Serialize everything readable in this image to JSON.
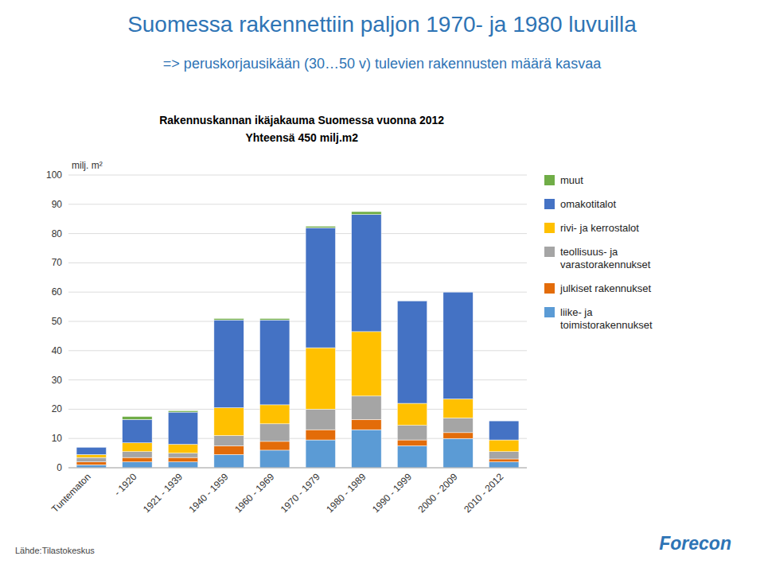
{
  "chart_data": {
    "type": "bar",
    "stacked": true,
    "title": "Suomessa rakennettiin paljon 1970- ja 1980 luvuilla",
    "subtitle": "=> peruskorjausikään (30…50 v) tulevien rakennusten määrä kasvaa",
    "annotations": [
      "Rakennuskannan ikäjakauma Suomessa vuonna 2012",
      "Yhteensä 450 milj.m2",
      "Lähde:Tilastokeskus",
      "Forecon"
    ],
    "y_label": "milj. m²",
    "categories": [
      "Tuntematon",
      "- 1920",
      "1921 - 1939",
      "1940 - 1959",
      "1960 - 1969",
      "1970 - 1979",
      "1980 - 1989",
      "1990 - 1999",
      "2000 - 2009",
      "2010 - 2012"
    ],
    "series": [
      {
        "name": "liike- ja\ntoimistorakennukset",
        "color": "#5B9BD5",
        "values": [
          1.0,
          2.0,
          2.0,
          4.5,
          6.0,
          9.5,
          13.0,
          7.5,
          10.0,
          2.0
        ]
      },
      {
        "name": "julkiset rakennukset",
        "color": "#E36C09",
        "values": [
          1.0,
          1.5,
          1.5,
          3.0,
          3.0,
          3.5,
          3.5,
          2.0,
          2.0,
          1.0
        ]
      },
      {
        "name": "teollisuus- ja\nvarastorakennukset",
        "color": "#A5A5A5",
        "values": [
          1.5,
          2.0,
          1.5,
          3.5,
          6.0,
          7.0,
          8.0,
          5.0,
          5.0,
          2.5
        ]
      },
      {
        "name": "rivi- ja kerrostalot",
        "color": "#FFC000",
        "values": [
          1.0,
          3.0,
          3.0,
          9.5,
          6.5,
          21.0,
          22.0,
          7.5,
          6.5,
          4.0
        ]
      },
      {
        "name": "omakotitalot",
        "color": "#4472C4",
        "values": [
          2.5,
          8.0,
          11.0,
          30.0,
          29.0,
          41.0,
          40.0,
          35.0,
          36.5,
          6.5
        ]
      },
      {
        "name": "muut",
        "color": "#70AD47",
        "values": [
          0.0,
          1.0,
          0.5,
          0.5,
          0.5,
          0.5,
          1.0,
          0.0,
          0.0,
          0.0
        ]
      }
    ],
    "ylim": [
      0,
      100
    ],
    "yticks": [
      0,
      10,
      20,
      30,
      40,
      50,
      60,
      70,
      80,
      90,
      100
    ],
    "grid": true,
    "legend": "right"
  }
}
